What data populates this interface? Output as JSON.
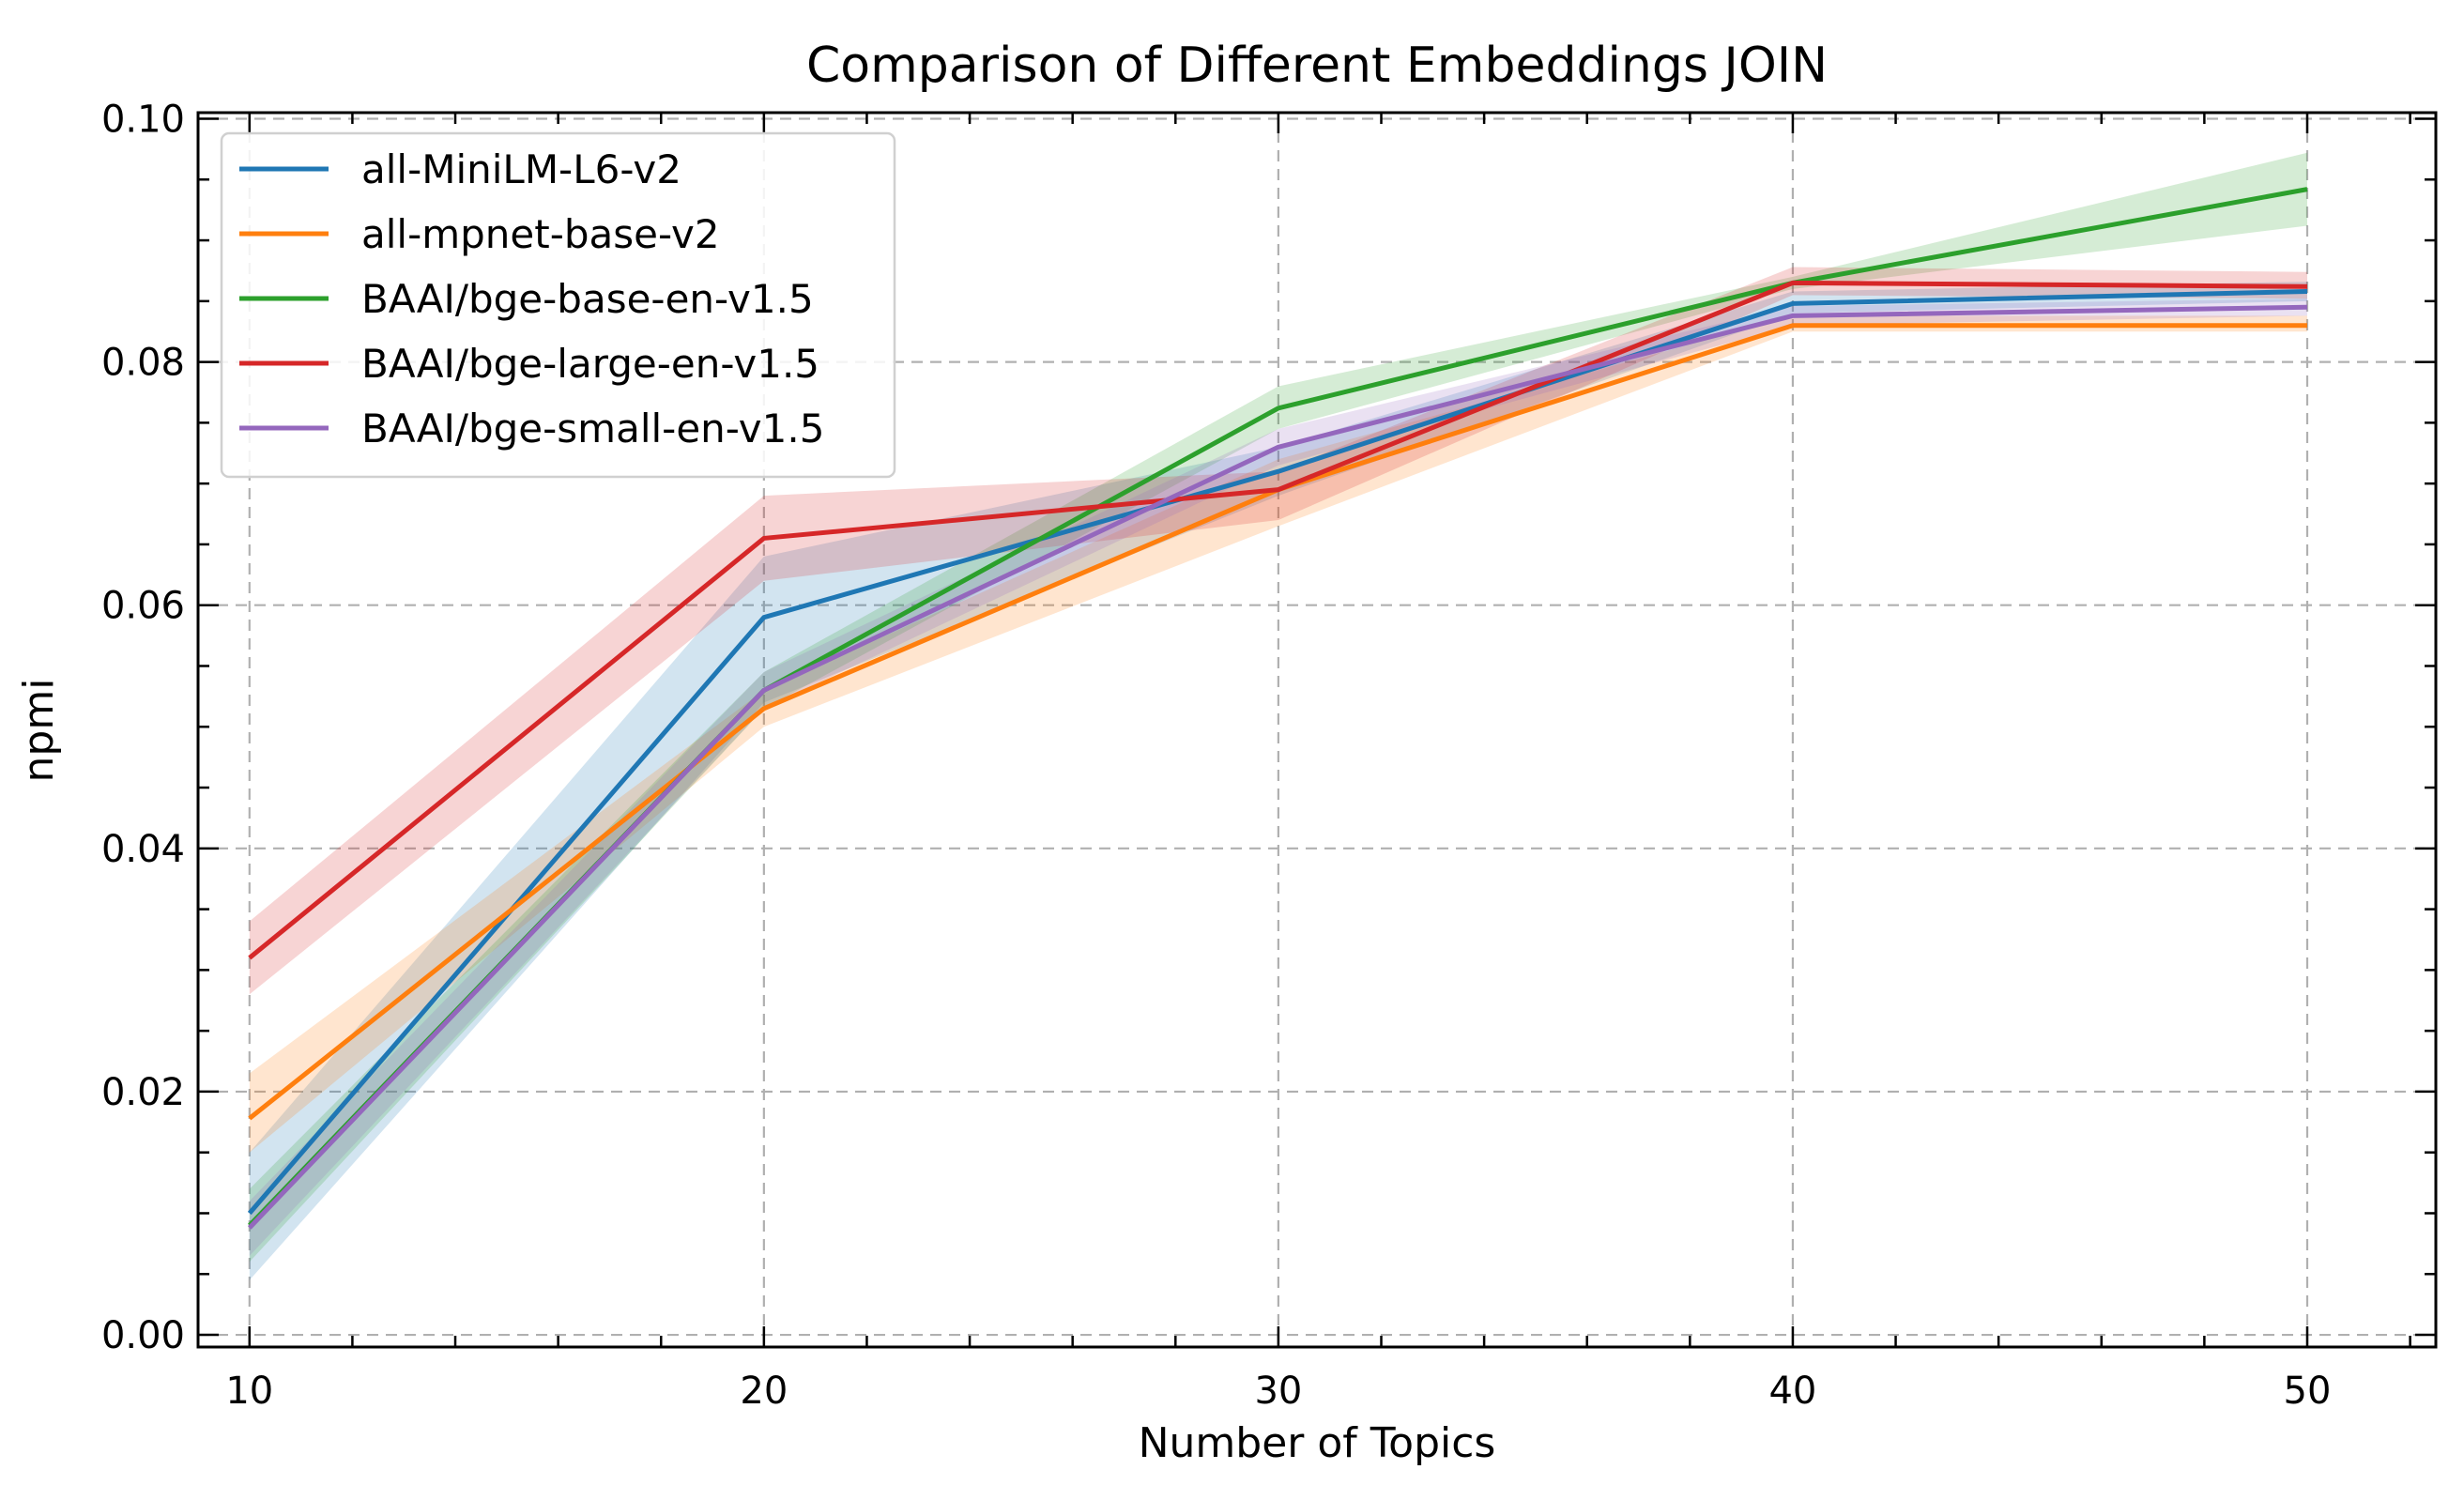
{
  "chart_data": {
    "type": "line",
    "title": "Comparison of Different Embeddings JOIN",
    "xlabel": "Number of Topics",
    "ylabel": "npmi",
    "x": [
      10,
      20,
      30,
      40,
      50
    ],
    "xlim": [
      9,
      52.5
    ],
    "ylim": [
      -0.001,
      0.1005
    ],
    "xticks": [
      10,
      20,
      30,
      40,
      50
    ],
    "xtick_labels": [
      "10",
      "20",
      "30",
      "40",
      "50"
    ],
    "yticks": [
      0.0,
      0.02,
      0.04,
      0.06,
      0.08,
      0.1
    ],
    "ytick_labels": [
      "0.00",
      "0.02",
      "0.04",
      "0.06",
      "0.08",
      "0.10"
    ],
    "grid": true,
    "legend_position": "top-left",
    "series": [
      {
        "name": "all-MiniLM-L6-v2",
        "color": "#1f77b4",
        "values": [
          0.01,
          0.059,
          0.071,
          0.0848,
          0.0858
        ],
        "lower": [
          0.0045,
          0.052,
          0.069,
          0.084,
          0.085
        ],
        "upper": [
          0.015,
          0.064,
          0.073,
          0.0858,
          0.0866
        ]
      },
      {
        "name": "all-mpnet-base-v2",
        "color": "#ff7f0e",
        "values": [
          0.0178,
          0.0515,
          0.0695,
          0.083,
          0.083
        ],
        "lower": [
          0.015,
          0.05,
          0.0665,
          0.0825,
          0.0825
        ],
        "upper": [
          0.0215,
          0.053,
          0.072,
          0.0838,
          0.0838
        ]
      },
      {
        "name": "BAAI/bge-base-en-v1.5",
        "color": "#2ca02c",
        "values": [
          0.009,
          0.053,
          0.0762,
          0.0865,
          0.0942
        ],
        "lower": [
          0.006,
          0.0515,
          0.0745,
          0.086,
          0.0912
        ],
        "upper": [
          0.012,
          0.0545,
          0.078,
          0.087,
          0.0972
        ]
      },
      {
        "name": "BAAI/bge-large-en-v1.5",
        "color": "#d62728",
        "values": [
          0.031,
          0.0655,
          0.0695,
          0.0865,
          0.0862
        ],
        "lower": [
          0.028,
          0.062,
          0.067,
          0.0855,
          0.0852
        ],
        "upper": [
          0.034,
          0.069,
          0.071,
          0.0878,
          0.0874
        ]
      },
      {
        "name": "BAAI/bge-small-en-v1.5",
        "color": "#9467bd",
        "values": [
          0.0088,
          0.053,
          0.073,
          0.0838,
          0.0845
        ],
        "lower": [
          0.0065,
          0.0515,
          0.0715,
          0.083,
          0.0838
        ],
        "upper": [
          0.011,
          0.0545,
          0.0745,
          0.0846,
          0.0852
        ]
      }
    ]
  }
}
